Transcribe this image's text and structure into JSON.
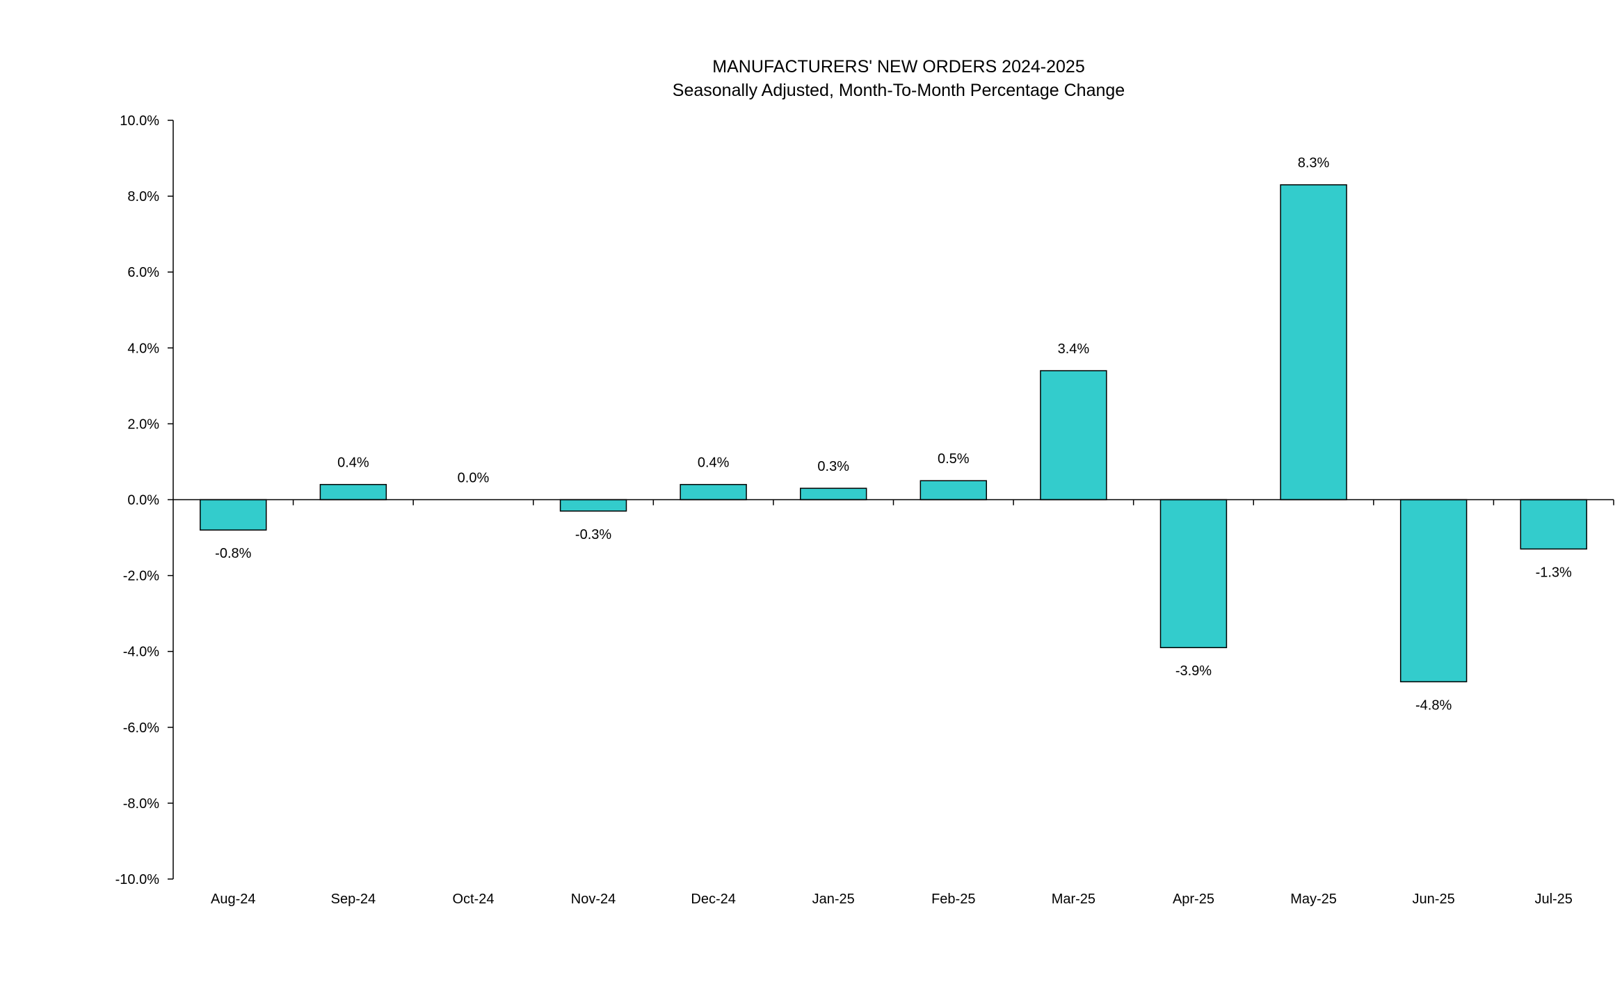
{
  "chart_data": {
    "type": "bar",
    "title": "MANUFACTURERS' NEW ORDERS 2024-2025",
    "subtitle": "Seasonally Adjusted,  Month-To-Month Percentage Change",
    "xlabel": "",
    "ylabel": "",
    "categories": [
      "Aug-24",
      "Sep-24",
      "Oct-24",
      "Nov-24",
      "Dec-24",
      "Jan-25",
      "Feb-25",
      "Mar-25",
      "Apr-25",
      "May-25",
      "Jun-25",
      "Jul-25"
    ],
    "values": [
      -0.8,
      0.4,
      0.0,
      -0.3,
      0.4,
      0.3,
      0.5,
      3.4,
      -3.9,
      8.3,
      -4.8,
      -1.3
    ],
    "data_labels": [
      "-0.8%",
      "0.4%",
      "0.0%",
      "-0.3%",
      "0.4%",
      "0.3%",
      "0.5%",
      "3.4%",
      "-3.9%",
      "8.3%",
      "-4.8%",
      "-1.3%"
    ],
    "ylim": [
      -10,
      10
    ],
    "y_ticks": [
      10,
      8,
      6,
      4,
      2,
      0,
      -2,
      -4,
      -6,
      -8,
      -10
    ],
    "y_tick_labels": [
      "10.0%",
      "8.0%",
      "6.0%",
      "4.0%",
      "2.0%",
      "0.0%",
      "-2.0%",
      "-4.0%",
      "-6.0%",
      "-8.0%",
      "-10.0%"
    ],
    "grid": false,
    "legend": "none",
    "bar_color": "#33CCCC",
    "bar_edge_color": "#000000"
  }
}
